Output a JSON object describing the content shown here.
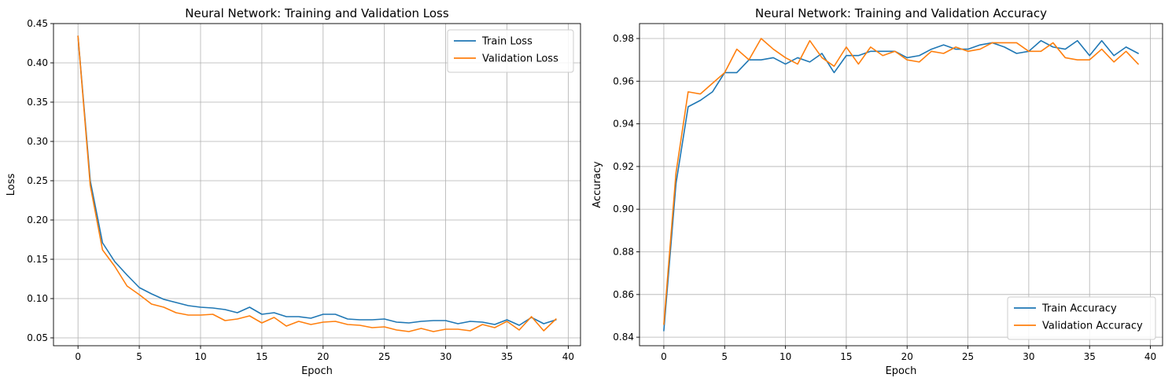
{
  "chart_data": [
    {
      "type": "line",
      "title": "Neural Network: Training and Validation Loss",
      "xlabel": "Epoch",
      "ylabel": "Loss",
      "xlim": [
        -2,
        41
      ],
      "ylim": [
        0.04,
        0.45
      ],
      "xticks": [
        0,
        5,
        10,
        15,
        20,
        25,
        30,
        35,
        40
      ],
      "yticks": [
        0.05,
        0.1,
        0.15,
        0.2,
        0.25,
        0.3,
        0.35,
        0.4,
        0.45
      ],
      "xtick_labels": [
        "0",
        "5",
        "10",
        "15",
        "20",
        "25",
        "30",
        "35",
        "40"
      ],
      "ytick_labels": [
        "0.05",
        "0.10",
        "0.15",
        "0.20",
        "0.25",
        "0.30",
        "0.35",
        "0.40",
        "0.45"
      ],
      "grid": true,
      "legend_position": "top-right",
      "series": [
        {
          "name": "Train Loss",
          "color": "#1f77b4",
          "x": [
            0,
            1,
            2,
            3,
            4,
            5,
            6,
            7,
            8,
            9,
            10,
            11,
            12,
            13,
            14,
            15,
            16,
            17,
            18,
            19,
            20,
            21,
            22,
            23,
            24,
            25,
            26,
            27,
            28,
            29,
            30,
            31,
            32,
            33,
            34,
            35,
            36,
            37,
            38,
            39
          ],
          "values": [
            0.434,
            0.25,
            0.171,
            0.147,
            0.13,
            0.114,
            0.106,
            0.099,
            0.095,
            0.091,
            0.089,
            0.088,
            0.086,
            0.082,
            0.089,
            0.08,
            0.082,
            0.077,
            0.077,
            0.075,
            0.08,
            0.08,
            0.074,
            0.073,
            0.073,
            0.074,
            0.07,
            0.069,
            0.071,
            0.072,
            0.072,
            0.068,
            0.071,
            0.07,
            0.067,
            0.073,
            0.066,
            0.076,
            0.068,
            0.073
          ]
        },
        {
          "name": "Validation Loss",
          "color": "#ff7f0e",
          "x": [
            0,
            1,
            2,
            3,
            4,
            5,
            6,
            7,
            8,
            9,
            10,
            11,
            12,
            13,
            14,
            15,
            16,
            17,
            18,
            19,
            20,
            21,
            22,
            23,
            24,
            25,
            26,
            27,
            28,
            29,
            30,
            31,
            32,
            33,
            34,
            35,
            36,
            37,
            38,
            39
          ],
          "values": [
            0.434,
            0.244,
            0.162,
            0.141,
            0.116,
            0.105,
            0.093,
            0.089,
            0.082,
            0.079,
            0.079,
            0.08,
            0.072,
            0.074,
            0.078,
            0.069,
            0.076,
            0.065,
            0.071,
            0.067,
            0.07,
            0.071,
            0.067,
            0.066,
            0.063,
            0.064,
            0.06,
            0.058,
            0.062,
            0.058,
            0.061,
            0.061,
            0.059,
            0.067,
            0.063,
            0.071,
            0.06,
            0.077,
            0.059,
            0.074
          ]
        }
      ]
    },
    {
      "type": "line",
      "title": "Neural Network: Training and Validation Accuracy",
      "xlabel": "Epoch",
      "ylabel": "Accuracy",
      "xlim": [
        -2,
        41
      ],
      "ylim": [
        0.836,
        0.987
      ],
      "xticks": [
        0,
        5,
        10,
        15,
        20,
        25,
        30,
        35,
        40
      ],
      "yticks": [
        0.84,
        0.86,
        0.88,
        0.9,
        0.92,
        0.94,
        0.96,
        0.98
      ],
      "xtick_labels": [
        "0",
        "5",
        "10",
        "15",
        "20",
        "25",
        "30",
        "35",
        "40"
      ],
      "ytick_labels": [
        "0.84",
        "0.86",
        "0.88",
        "0.90",
        "0.92",
        "0.94",
        "0.96",
        "0.98"
      ],
      "grid": true,
      "legend_position": "bottom-right",
      "series": [
        {
          "name": "Train Accuracy",
          "color": "#1f77b4",
          "x": [
            0,
            1,
            2,
            3,
            4,
            5,
            6,
            7,
            8,
            9,
            10,
            11,
            12,
            13,
            14,
            15,
            16,
            17,
            18,
            19,
            20,
            21,
            22,
            23,
            24,
            25,
            26,
            27,
            28,
            29,
            30,
            31,
            32,
            33,
            34,
            35,
            36,
            37,
            38,
            39
          ],
          "values": [
            0.843,
            0.912,
            0.948,
            0.951,
            0.955,
            0.964,
            0.964,
            0.97,
            0.97,
            0.971,
            0.968,
            0.971,
            0.969,
            0.973,
            0.964,
            0.972,
            0.972,
            0.974,
            0.974,
            0.974,
            0.971,
            0.972,
            0.975,
            0.977,
            0.975,
            0.975,
            0.977,
            0.978,
            0.976,
            0.973,
            0.974,
            0.979,
            0.976,
            0.975,
            0.979,
            0.972,
            0.979,
            0.972,
            0.976,
            0.973
          ]
        },
        {
          "name": "Validation Accuracy",
          "color": "#ff7f0e",
          "x": [
            0,
            1,
            2,
            3,
            4,
            5,
            6,
            7,
            8,
            9,
            10,
            11,
            12,
            13,
            14,
            15,
            16,
            17,
            18,
            19,
            20,
            21,
            22,
            23,
            24,
            25,
            26,
            27,
            28,
            29,
            30,
            31,
            32,
            33,
            34,
            35,
            36,
            37,
            38,
            39
          ],
          "values": [
            0.846,
            0.917,
            0.955,
            0.954,
            0.959,
            0.964,
            0.975,
            0.97,
            0.98,
            0.975,
            0.971,
            0.968,
            0.979,
            0.971,
            0.967,
            0.976,
            0.968,
            0.976,
            0.972,
            0.974,
            0.97,
            0.969,
            0.974,
            0.973,
            0.976,
            0.974,
            0.975,
            0.978,
            0.978,
            0.978,
            0.974,
            0.974,
            0.978,
            0.971,
            0.97,
            0.97,
            0.975,
            0.969,
            0.974,
            0.968
          ]
        }
      ]
    }
  ]
}
